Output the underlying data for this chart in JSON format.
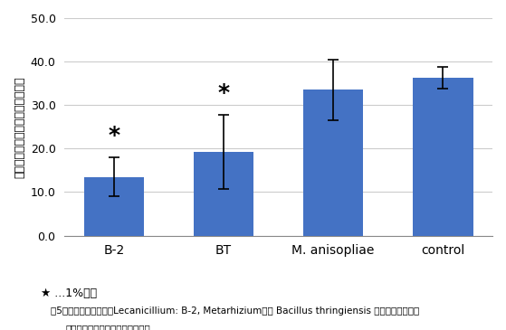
{
  "categories": [
    "B-2",
    "BT",
    "M. anisopliae",
    "control"
  ],
  "values": [
    13.5,
    19.2,
    33.5,
    36.3
  ],
  "errors": [
    4.5,
    8.5,
    7.0,
    2.5
  ],
  "bar_color": "#4472C4",
  "bar_width": 0.55,
  "ylim": [
    0,
    50
  ],
  "yticks": [
    0.0,
    10.0,
    20.0,
    30.0,
    40.0,
    50.0
  ],
  "ylabel": "トマト灰色カビ病の羅病度（％）",
  "significance": [
    true,
    true,
    false,
    false
  ],
  "star_positions": [
    21.0,
    30.5,
    null,
    null
  ],
  "star_symbol": "*",
  "legend_text": "★ ...1%水準",
  "background_color": "#ffffff",
  "grid_color": "#cccccc",
  "caption_line1": "図5　昆虫病原糸状菌（Lecanicillium: B-2, Metarhizium）と Bacillus thringiensis をトマトの株元に",
  "caption_line2": "処理した時の灰色かび病の発病度"
}
